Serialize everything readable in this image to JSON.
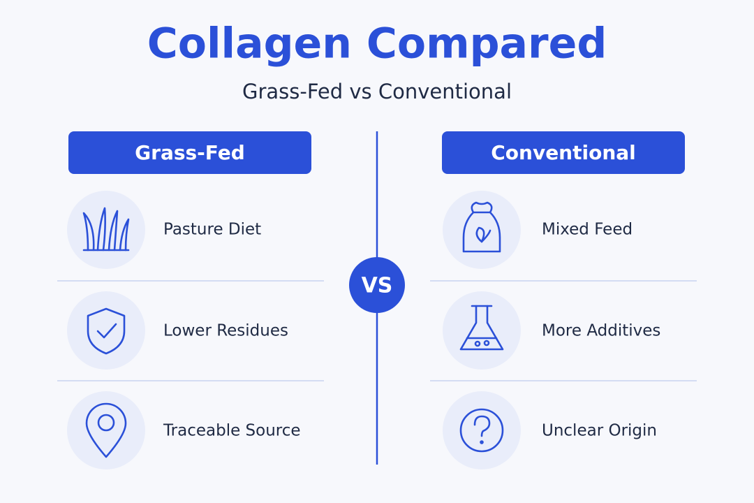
{
  "header": {
    "title": "Collagen Compared",
    "subtitle": "Grass-Fed vs Conventional"
  },
  "columns": [
    {
      "heading": "Grass-Fed",
      "items": [
        "Pasture Diet",
        "Lower Residues",
        "Traceable Source"
      ]
    },
    {
      "heading": "Conventional",
      "items": [
        "Mixed Feed",
        "More Additives",
        "Unclear Origin"
      ]
    }
  ],
  "vs": "VS"
}
